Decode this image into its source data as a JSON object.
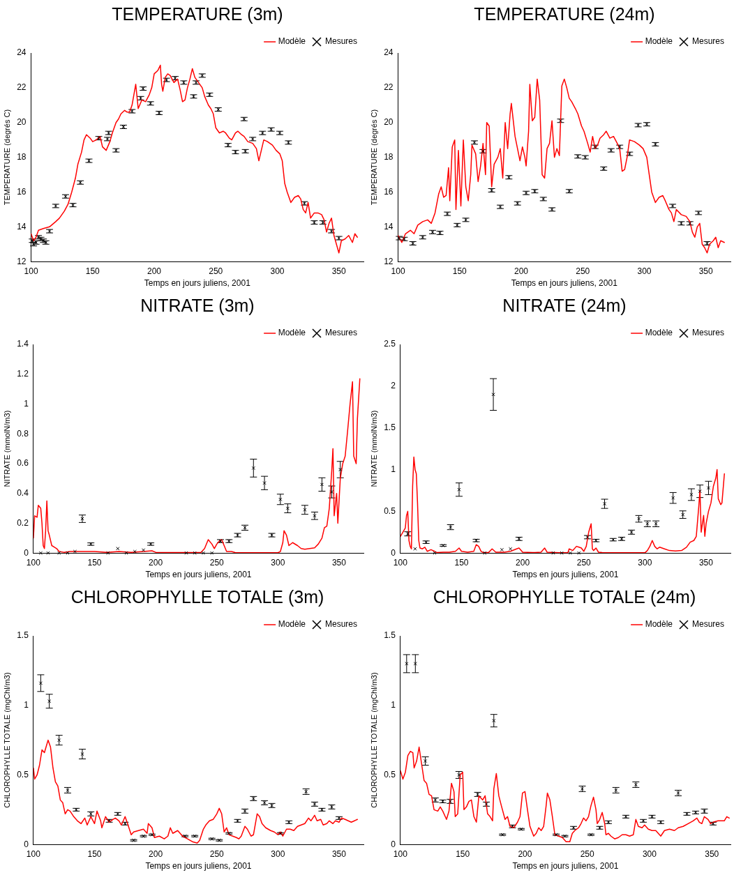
{
  "chart_data": [
    {
      "type": "line",
      "title": "TEMPERATURE (3m)",
      "xlabel": "Temps en jours juliens, 2001",
      "ylabel": "TEMPERATURE (degrés C)",
      "xlim": [
        100,
        370
      ],
      "xticks": [
        100,
        150,
        200,
        250,
        300,
        350
      ],
      "ylim": [
        12,
        24
      ],
      "yticks": [
        12,
        14,
        16,
        18,
        20,
        22,
        24
      ],
      "legend": "top right",
      "series": [
        {
          "name": "Modèle",
          "type": "line",
          "color": "#ff0000",
          "line_style": "solid",
          "x": [
            100,
            102,
            104,
            106,
            110,
            115,
            120,
            123,
            127,
            130,
            133,
            136,
            138,
            141,
            143,
            145,
            148,
            150,
            153,
            156,
            158,
            161,
            164,
            166,
            169,
            171,
            173,
            176,
            178,
            180,
            182,
            185,
            187,
            190,
            193,
            196,
            198,
            200,
            203,
            205,
            206,
            207,
            209,
            211,
            213,
            216,
            219,
            221,
            223,
            225,
            227,
            229,
            231,
            233,
            236,
            239,
            241,
            244,
            246,
            248,
            250,
            253,
            256,
            258,
            261,
            263,
            266,
            268,
            271,
            273,
            276,
            280,
            283,
            285,
            287,
            289,
            292,
            296,
            299,
            302,
            304,
            306,
            308,
            311,
            314,
            317,
            319,
            321,
            323,
            325,
            327,
            330,
            333,
            336,
            338,
            340,
            342,
            344,
            346,
            348,
            350,
            352,
            355,
            358,
            361,
            363,
            365
          ],
          "values": [
            13.6,
            13.2,
            13.4,
            13.8,
            13.9,
            14.0,
            14.3,
            14.5,
            14.9,
            15.3,
            16.0,
            16.8,
            17.6,
            18.3,
            19.0,
            19.3,
            19.1,
            18.9,
            19.0,
            19.2,
            18.6,
            18.4,
            18.9,
            19.4,
            20.0,
            20.2,
            20.5,
            20.7,
            20.6,
            20.6,
            21.0,
            22.2,
            20.8,
            21.3,
            21.2,
            21.6,
            22.0,
            22.8,
            23.0,
            23.3,
            22.2,
            21.8,
            22.6,
            22.8,
            22.7,
            22.3,
            22.5,
            21.9,
            21.2,
            21.3,
            22.0,
            22.5,
            23.1,
            22.6,
            22.3,
            22.0,
            21.5,
            21.0,
            20.8,
            20.5,
            19.7,
            19.4,
            19.5,
            19.4,
            19.1,
            19.0,
            19.4,
            19.5,
            19.3,
            19.2,
            18.9,
            18.8,
            18.5,
            17.8,
            18.4,
            19.0,
            18.9,
            18.7,
            18.4,
            18.2,
            17.8,
            16.5,
            16.0,
            15.4,
            15.7,
            15.8,
            15.6,
            15.0,
            14.8,
            15.4,
            14.5,
            14.8,
            14.8,
            14.7,
            14.4,
            13.7,
            14.2,
            14.5,
            13.5,
            13.0,
            12.5,
            13.2,
            13.3,
            13.5,
            13.1,
            13.6,
            13.4
          ]
        },
        {
          "name": "Mesures",
          "type": "scatter",
          "color": "#000000",
          "marker": "cross",
          "x": [
            101,
            102,
            104,
            106,
            108,
            110,
            112,
            115,
            120,
            128,
            134,
            140,
            147,
            155,
            162,
            163,
            169,
            175,
            182,
            189,
            191,
            197,
            204,
            210,
            217,
            224,
            232,
            234,
            239,
            245,
            252,
            260,
            266,
            273,
            274,
            280,
            288,
            295,
            302,
            309,
            322,
            330,
            337,
            344,
            350
          ],
          "values": [
            13.2,
            13.0,
            13.1,
            13.4,
            13.3,
            13.2,
            13.1,
            13.75,
            15.2,
            15.75,
            15.25,
            16.55,
            17.8,
            19.1,
            19.05,
            19.4,
            18.4,
            19.75,
            20.65,
            21.4,
            21.95,
            21.1,
            20.55,
            22.45,
            22.55,
            22.3,
            21.5,
            22.3,
            22.7,
            21.6,
            20.75,
            18.7,
            18.3,
            20.2,
            18.35,
            19.05,
            19.4,
            19.6,
            19.4,
            18.85,
            15.35,
            14.25,
            14.25,
            13.75,
            13.35
          ],
          "errors": [
            0.1,
            0.1,
            0.1,
            0.1,
            0.1,
            0.1,
            0.1,
            0.1,
            0.1,
            0.1,
            0.1,
            0.1,
            0.1,
            0.1,
            0.1,
            0.1,
            0.1,
            0.1,
            0.1,
            0.1,
            0.1,
            0.1,
            0.1,
            0.1,
            0.1,
            0.1,
            0.1,
            0.1,
            0.1,
            0.1,
            0.1,
            0.1,
            0.1,
            0.1,
            0.1,
            0.1,
            0.1,
            0.1,
            0.1,
            0.1,
            0.1,
            0.1,
            0.1,
            0.1,
            0.1
          ]
        }
      ]
    },
    {
      "type": "line",
      "title": "TEMPERATURE (24m)",
      "xlabel": "Temps en jours juliens, 2001",
      "ylabel": "TEMPERATURE (degrés C)",
      "xlim": [
        100,
        370
      ],
      "xticks": [
        100,
        150,
        200,
        250,
        300,
        350
      ],
      "ylim": [
        12,
        24
      ],
      "yticks": [
        12,
        14,
        16,
        18,
        20,
        22,
        24
      ],
      "legend": "top right",
      "series": [
        {
          "name": "Modèle",
          "type": "line",
          "color": "#ff0000",
          "line_style": "solid",
          "x": [
            100,
            103,
            106,
            110,
            113,
            116,
            120,
            124,
            127,
            130,
            133,
            135,
            137,
            139,
            141,
            142,
            144,
            146,
            147,
            149,
            151,
            153,
            155,
            157,
            159,
            160,
            163,
            165,
            167,
            169,
            171,
            172,
            174,
            176,
            178,
            181,
            183,
            185,
            187,
            189,
            191,
            192,
            195,
            197,
            199,
            201,
            203,
            204,
            206,
            207,
            209,
            211,
            213,
            215,
            217,
            219,
            221,
            223,
            225,
            227,
            229,
            231,
            233,
            235,
            237,
            239,
            241,
            244,
            246,
            249,
            251,
            254,
            256,
            258,
            260,
            262,
            264,
            267,
            269,
            272,
            275,
            278,
            280,
            282,
            284,
            286,
            288,
            292,
            296,
            299,
            302,
            304,
            306,
            309,
            312,
            315,
            317,
            320,
            322,
            324,
            326,
            330,
            334,
            337,
            339,
            341,
            343,
            345,
            347,
            349,
            351,
            353,
            356,
            358,
            360,
            362,
            365
          ],
          "values": [
            13.5,
            13.1,
            13.6,
            13.8,
            13.6,
            14.1,
            14.3,
            14.4,
            14.2,
            14.8,
            15.9,
            16.3,
            15.7,
            15.8,
            17.4,
            15.5,
            18.6,
            19.0,
            15.0,
            18.4,
            15.2,
            19.0,
            16.3,
            15.5,
            17.0,
            18.7,
            18.2,
            16.6,
            17.5,
            18.8,
            17.0,
            20.0,
            19.8,
            16.3,
            17.6,
            18.0,
            18.5,
            16.8,
            20.0,
            18.5,
            20.5,
            21.1,
            19.2,
            18.5,
            17.8,
            18.6,
            18.0,
            17.5,
            19.5,
            22.2,
            20.1,
            20.3,
            22.5,
            21.3,
            17.0,
            16.8,
            18.5,
            18.8,
            20.1,
            18.0,
            18.5,
            18.1,
            22.1,
            22.5,
            22.0,
            21.4,
            21.2,
            20.8,
            20.5,
            19.8,
            19.5,
            18.8,
            18.3,
            19.2,
            18.5,
            18.7,
            19.1,
            19.3,
            19.5,
            19.1,
            19.2,
            18.8,
            18.5,
            17.2,
            17.3,
            18.0,
            19.0,
            18.9,
            18.7,
            18.5,
            18.0,
            17.0,
            16.0,
            15.4,
            15.7,
            15.8,
            15.5,
            15.0,
            14.8,
            14.3,
            15.0,
            14.7,
            14.6,
            14.3,
            13.7,
            13.4,
            14.0,
            14.2,
            13.0,
            12.8,
            12.5,
            13.0,
            13.2,
            13.4,
            12.8,
            13.2,
            13.1
          ]
        },
        {
          "name": "Mesures",
          "type": "scatter",
          "color": "#000000",
          "marker": "cross",
          "x": [
            101,
            105,
            112,
            120,
            128,
            134,
            140,
            148,
            155,
            162,
            169,
            176,
            183,
            190,
            197,
            204,
            211,
            218,
            225,
            232,
            239,
            246,
            252,
            260,
            267,
            273,
            280,
            288,
            295,
            302,
            309,
            323,
            330,
            337,
            344,
            351
          ],
          "values": [
            13.35,
            13.3,
            13.05,
            13.4,
            13.7,
            13.65,
            14.75,
            14.1,
            14.4,
            18.85,
            18.35,
            16.1,
            15.15,
            16.85,
            15.35,
            15.95,
            16.05,
            15.6,
            15.0,
            20.1,
            16.05,
            18.05,
            18.0,
            18.6,
            17.35,
            18.4,
            18.6,
            18.2,
            19.85,
            19.9,
            18.75,
            15.2,
            14.2,
            14.2,
            14.8,
            13.05
          ],
          "errors": [
            0.1,
            0.1,
            0.1,
            0.1,
            0.1,
            0.1,
            0.1,
            0.1,
            0.1,
            0.1,
            0.1,
            0.1,
            0.1,
            0.1,
            0.1,
            0.1,
            0.1,
            0.1,
            0.1,
            0.1,
            0.1,
            0.1,
            0.1,
            0.1,
            0.1,
            0.1,
            0.1,
            0.1,
            0.1,
            0.1,
            0.1,
            0.1,
            0.1,
            0.1,
            0.1,
            0.1
          ]
        }
      ]
    },
    {
      "type": "line",
      "title": "NITRATE (3m)",
      "xlabel": "Temps en jours juliens, 2001",
      "ylabel": "NITRATE (mmolN/m3)",
      "xlim": [
        100,
        370
      ],
      "xticks": [
        100,
        150,
        200,
        250,
        300,
        350
      ],
      "ylim": [
        0,
        1.4
      ],
      "yticks": [
        0,
        0.2,
        0.4,
        0.6,
        0.8,
        1,
        1.2,
        1.4
      ],
      "legend": "top right",
      "series": [
        {
          "name": "Modèle",
          "type": "line",
          "color": "#ff0000",
          "line_style": "solid",
          "x": [
            100,
            101,
            103,
            104,
            106,
            107,
            108,
            109,
            110,
            111,
            112,
            113,
            115,
            117,
            119,
            121,
            125,
            130,
            140,
            150,
            160,
            170,
            180,
            190,
            197,
            200,
            210,
            220,
            230,
            237,
            240,
            243,
            246,
            248,
            250,
            252,
            254,
            256,
            258,
            262,
            265,
            280,
            300,
            302,
            304,
            305,
            307,
            309,
            312,
            316,
            319,
            322,
            326,
            330,
            333,
            336,
            338,
            340,
            342,
            344,
            345,
            346,
            348,
            349,
            351,
            353,
            355,
            357,
            359,
            361,
            362,
            364,
            365,
            367
          ],
          "values": [
            0.1,
            0.25,
            0.24,
            0.32,
            0.3,
            0.2,
            0.05,
            0.03,
            0.15,
            0.35,
            0.15,
            0.12,
            0.05,
            0.04,
            0.03,
            0.01,
            0.005,
            0.01,
            0.01,
            0.01,
            0.005,
            0.01,
            0.005,
            0.01,
            0.015,
            0.005,
            0.003,
            0.003,
            0.003,
            0.003,
            0.03,
            0.09,
            0.06,
            0.03,
            0.06,
            0.08,
            0.09,
            0.05,
            0.01,
            0.01,
            0.003,
            0.002,
            0.002,
            0.01,
            0.07,
            0.15,
            0.12,
            0.05,
            0.07,
            0.05,
            0.03,
            0.025,
            0.03,
            0.035,
            0.06,
            0.1,
            0.17,
            0.18,
            0.3,
            0.55,
            0.7,
            0.25,
            0.4,
            0.2,
            0.5,
            0.6,
            0.65,
            0.82,
            1.0,
            1.15,
            0.65,
            0.6,
            0.9,
            1.17
          ]
        },
        {
          "name": "Mesures",
          "type": "scatter",
          "color": "#000000",
          "marker": "cross",
          "x": [
            106,
            112,
            121,
            128,
            134,
            140,
            147,
            161,
            169,
            176,
            183,
            190,
            196,
            225,
            232,
            239,
            246,
            253,
            260,
            267,
            273,
            280,
            289,
            295,
            302,
            308,
            322,
            330,
            336,
            344,
            351
          ],
          "values": [
            0,
            0,
            0,
            0,
            0.01,
            0.23,
            0.06,
            0,
            0.03,
            0,
            0.01,
            0.02,
            0.06,
            0,
            0,
            0,
            0,
            0.08,
            0.08,
            0.12,
            0.17,
            0.57,
            0.47,
            0.12,
            0.36,
            0.3,
            0.29,
            0.25,
            0.46,
            0.41,
            0.56
          ],
          "errors": [
            null,
            null,
            null,
            null,
            null,
            0.025,
            0.008,
            null,
            null,
            null,
            null,
            null,
            0.008,
            null,
            null,
            null,
            null,
            0.01,
            0.01,
            0.012,
            0.017,
            0.06,
            0.045,
            0.012,
            0.035,
            0.03,
            0.03,
            0.025,
            0.045,
            0.04,
            0.055
          ]
        }
      ]
    },
    {
      "type": "line",
      "title": "NITRATE (24m)",
      "xlabel": "Temps en jours juliens, 2001",
      "ylabel": "NITRATE (mmolN/m3)",
      "xlim": [
        100,
        370
      ],
      "xticks": [
        100,
        150,
        200,
        250,
        300,
        350
      ],
      "ylim": [
        0,
        2.5
      ],
      "yticks": [
        0,
        0.5,
        1,
        1.5,
        2,
        2.5
      ],
      "legend": "top right",
      "series": [
        {
          "name": "Modèle",
          "type": "line",
          "color": "#ff0000",
          "line_style": "solid",
          "x": [
            100,
            102,
            104,
            105,
            106,
            107,
            108,
            109,
            110,
            111,
            112,
            113,
            114,
            115,
            116,
            118,
            120,
            122,
            125,
            128,
            130,
            135,
            140,
            145,
            148,
            150,
            155,
            160,
            162,
            164,
            166,
            168,
            172,
            175,
            178,
            185,
            190,
            195,
            197,
            200,
            210,
            215,
            218,
            220,
            230,
            237,
            238,
            241,
            244,
            246,
            248,
            250,
            252,
            254,
            256,
            257,
            258,
            260,
            262,
            265,
            280,
            300,
            302,
            304,
            306,
            308,
            310,
            312,
            316,
            320,
            325,
            330,
            334,
            337,
            340,
            342,
            344,
            345,
            346,
            348,
            349,
            350,
            352,
            354,
            356,
            358,
            359,
            360,
            362,
            363,
            365
          ],
          "values": [
            0.2,
            0.25,
            0.3,
            0.45,
            0.5,
            0.15,
            0.08,
            0.05,
            0.8,
            1.15,
            1.0,
            0.95,
            0.6,
            0.15,
            0.06,
            0.05,
            0.07,
            0.02,
            0.04,
            0.02,
            0.005,
            0.01,
            0.01,
            0.02,
            0.06,
            0.02,
            0.01,
            0.02,
            0.1,
            0.08,
            0.02,
            0.005,
            0.005,
            0.05,
            0.01,
            0.01,
            0.02,
            0.05,
            0.06,
            0.01,
            0.005,
            0.01,
            0.06,
            0.01,
            0.003,
            0.003,
            0.05,
            0.03,
            0.08,
            0.07,
            0.06,
            0.02,
            0.08,
            0.25,
            0.35,
            0.05,
            0.03,
            0.06,
            0.01,
            0.005,
            0.003,
            0.003,
            0.03,
            0.08,
            0.15,
            0.08,
            0.05,
            0.07,
            0.05,
            0.03,
            0.025,
            0.03,
            0.07,
            0.13,
            0.15,
            0.2,
            0.55,
            0.75,
            0.25,
            0.45,
            0.2,
            0.35,
            0.5,
            0.6,
            0.8,
            0.9,
            1.0,
            0.65,
            0.58,
            0.6,
            0.95
          ]
        },
        {
          "name": "Mesures",
          "type": "scatter",
          "color": "#000000",
          "marker": "cross",
          "x": [
            106,
            112,
            121,
            128,
            135,
            141,
            148,
            162,
            169,
            176,
            183,
            190,
            197,
            225,
            232,
            239,
            246,
            253,
            260,
            267,
            274,
            281,
            289,
            295,
            302,
            309,
            323,
            331,
            338,
            345,
            352
          ],
          "values": [
            0.23,
            0.05,
            0.13,
            0,
            0.09,
            0.31,
            0.76,
            0.15,
            0,
            1.9,
            0.04,
            0.05,
            0.17,
            0,
            0,
            0,
            0,
            0.19,
            0.15,
            0.59,
            0.16,
            0.17,
            0.25,
            0.41,
            0.35,
            0.35,
            0.66,
            0.46,
            0.7,
            0.74,
            0.78
          ],
          "errors": [
            0.025,
            null,
            0.015,
            null,
            0.01,
            0.03,
            0.08,
            0.015,
            null,
            0.19,
            null,
            null,
            0.02,
            null,
            null,
            null,
            null,
            0.02,
            0.015,
            0.055,
            0.015,
            0.02,
            0.025,
            0.04,
            0.035,
            0.035,
            0.065,
            0.045,
            0.07,
            0.075,
            0.08
          ]
        }
      ]
    },
    {
      "type": "line",
      "title": "CHLOROPHYLLE TOTALE (3m)",
      "xlabel": "Temps en jours juliens, 2001",
      "ylabel": "CHLOROPHYLLE TOTALE (mgChl/m3)",
      "xlim": [
        100,
        370
      ],
      "xticks": [
        100,
        150,
        200,
        250,
        300,
        350
      ],
      "ylim": [
        0,
        1.5
      ],
      "yticks": [
        0,
        0.5,
        1,
        1.5
      ],
      "legend": "top right",
      "series": [
        {
          "name": "Modèle",
          "type": "line",
          "color": "#ff0000",
          "line_style": "solid",
          "x": [
            100,
            101,
            103,
            105,
            107,
            109,
            111,
            112,
            114,
            116,
            118,
            120,
            122,
            124,
            126,
            128,
            130,
            133,
            136,
            139,
            142,
            144,
            147,
            150,
            152,
            155,
            156,
            159,
            162,
            165,
            167,
            170,
            172,
            175,
            177,
            180,
            182,
            186,
            190,
            193,
            194,
            197,
            199,
            203,
            207,
            210,
            212,
            214,
            218,
            220,
            222,
            226,
            230,
            234,
            236,
            239,
            241,
            244,
            247,
            250,
            252,
            254,
            256,
            258,
            260,
            263,
            266,
            268,
            270,
            273,
            275,
            278,
            280,
            283,
            285,
            287,
            290,
            294,
            297,
            300,
            302,
            304,
            307,
            310,
            313,
            316,
            319,
            322,
            325,
            327,
            330,
            332,
            335,
            337,
            340,
            342,
            345,
            347,
            350,
            352,
            355,
            360,
            365
          ],
          "values": [
            0.55,
            0.47,
            0.5,
            0.57,
            0.68,
            0.66,
            0.72,
            0.75,
            0.7,
            0.55,
            0.45,
            0.42,
            0.32,
            0.3,
            0.22,
            0.25,
            0.24,
            0.2,
            0.17,
            0.15,
            0.19,
            0.14,
            0.2,
            0.15,
            0.24,
            0.17,
            0.12,
            0.2,
            0.16,
            0.18,
            0.19,
            0.17,
            0.14,
            0.2,
            0.15,
            0.07,
            0.09,
            0.1,
            0.11,
            0.08,
            0.15,
            0.12,
            0.05,
            0.06,
            0.04,
            0.06,
            0.12,
            0.08,
            0.1,
            0.08,
            0.06,
            0.04,
            0.02,
            0.01,
            0.03,
            0.11,
            0.14,
            0.17,
            0.18,
            0.22,
            0.26,
            0.22,
            0.09,
            0.12,
            0.07,
            0.06,
            0.05,
            0.04,
            0.06,
            0.13,
            0.11,
            0.06,
            0.07,
            0.22,
            0.2,
            0.15,
            0.12,
            0.1,
            0.09,
            0.07,
            0.09,
            0.06,
            0.11,
            0.11,
            0.1,
            0.13,
            0.14,
            0.15,
            0.19,
            0.17,
            0.21,
            0.17,
            0.18,
            0.14,
            0.15,
            0.17,
            0.15,
            0.17,
            0.16,
            0.19,
            0.18,
            0.16,
            0.18
          ]
        },
        {
          "name": "Mesures",
          "type": "scatter",
          "color": "#000000",
          "marker": "cross",
          "x": [
            106,
            113,
            121,
            128,
            135,
            140,
            147,
            162,
            169,
            175,
            182,
            190,
            197,
            224,
            232,
            246,
            252,
            260,
            267,
            273,
            280,
            289,
            295,
            302,
            309,
            323,
            330,
            336,
            344,
            350
          ],
          "values": [
            1.16,
            1.03,
            0.75,
            0.39,
            0.25,
            0.65,
            0.22,
            0.17,
            0.22,
            0.15,
            0.03,
            0.06,
            0.07,
            0.06,
            0.06,
            0.04,
            0.03,
            0.08,
            0.17,
            0.24,
            0.33,
            0.3,
            0.28,
            0.08,
            0.16,
            0.38,
            0.29,
            0.25,
            0.27,
            0.19
          ],
          "errors": [
            0.06,
            0.05,
            0.035,
            0.02,
            0.01,
            0.035,
            0.015,
            0.01,
            0.01,
            0.01,
            0.005,
            0.005,
            0.005,
            0.005,
            0.005,
            0.005,
            0.005,
            0.005,
            0.01,
            0.015,
            0.015,
            0.015,
            0.015,
            0.005,
            0.01,
            0.02,
            0.015,
            0.01,
            0.015,
            0.01
          ]
        }
      ]
    },
    {
      "type": "line",
      "title": "CHLOROPHYLLE TOTALE (24m)",
      "xlabel": "Temps en jours juliens, 2001",
      "ylabel": "CHLOROPHYLLE TOTALE (mgChl/m3)",
      "xlim": [
        100,
        365
      ],
      "xticks": [
        100,
        150,
        200,
        250,
        300,
        350
      ],
      "ylim": [
        0,
        1.5
      ],
      "yticks": [
        0,
        0.5,
        1,
        1.5
      ],
      "legend": "top right",
      "series": [
        {
          "name": "Modèle",
          "type": "line",
          "color": "#ff0000",
          "line_style": "solid",
          "x": [
            100,
            102,
            104,
            106,
            108,
            110,
            111,
            113,
            115,
            117,
            119,
            121,
            123,
            125,
            127,
            130,
            132,
            134,
            136,
            137,
            139,
            141,
            143,
            144,
            146,
            148,
            150,
            151,
            153,
            155,
            157,
            159,
            161,
            163,
            166,
            168,
            170,
            172,
            174,
            175,
            177,
            179,
            181,
            184,
            186,
            188,
            191,
            194,
            196,
            198,
            200,
            202,
            204,
            207,
            209,
            211,
            213,
            215,
            217,
            218,
            220,
            222,
            224,
            227,
            230,
            233,
            236,
            238,
            240,
            243,
            245,
            247,
            249,
            251,
            253,
            255,
            257,
            258,
            260,
            262,
            264,
            265,
            267,
            269,
            272,
            275,
            278,
            281,
            284,
            287,
            289,
            291,
            294,
            296,
            299,
            302,
            305,
            307,
            309,
            312,
            316,
            320,
            323,
            327,
            331,
            335,
            338,
            340,
            342,
            344,
            347,
            349,
            351,
            355,
            360,
            362,
            364
          ],
          "values": [
            0.53,
            0.47,
            0.52,
            0.64,
            0.67,
            0.66,
            0.55,
            0.6,
            0.7,
            0.58,
            0.46,
            0.44,
            0.36,
            0.35,
            0.25,
            0.24,
            0.27,
            0.24,
            0.2,
            0.18,
            0.24,
            0.44,
            0.38,
            0.2,
            0.22,
            0.5,
            0.52,
            0.25,
            0.27,
            0.31,
            0.32,
            0.2,
            0.16,
            0.35,
            0.32,
            0.35,
            0.22,
            0.2,
            0.17,
            0.4,
            0.51,
            0.35,
            0.28,
            0.18,
            0.2,
            0.13,
            0.12,
            0.16,
            0.2,
            0.37,
            0.38,
            0.25,
            0.13,
            0.06,
            0.08,
            0.12,
            0.1,
            0.13,
            0.28,
            0.37,
            0.32,
            0.2,
            0.07,
            0.06,
            0.05,
            0.02,
            0.02,
            0.08,
            0.1,
            0.12,
            0.15,
            0.19,
            0.17,
            0.2,
            0.28,
            0.34,
            0.25,
            0.15,
            0.18,
            0.23,
            0.15,
            0.07,
            0.08,
            0.06,
            0.04,
            0.05,
            0.07,
            0.07,
            0.06,
            0.07,
            0.18,
            0.13,
            0.12,
            0.14,
            0.11,
            0.1,
            0.1,
            0.08,
            0.06,
            0.1,
            0.11,
            0.1,
            0.12,
            0.13,
            0.15,
            0.17,
            0.19,
            0.16,
            0.15,
            0.2,
            0.18,
            0.15,
            0.16,
            0.17,
            0.17,
            0.2,
            0.19
          ]
        },
        {
          "name": "Mesures",
          "type": "scatter",
          "color": "#000000",
          "marker": "cross",
          "x": [
            105,
            112,
            120,
            128,
            134,
            140,
            147,
            162,
            169,
            175,
            182,
            190,
            197,
            225,
            232,
            239,
            246,
            253,
            260,
            267,
            273,
            281,
            289,
            295,
            302,
            309,
            323,
            330,
            337,
            344,
            351
          ],
          "values": [
            1.3,
            1.3,
            0.6,
            0.32,
            0.31,
            0.31,
            0.5,
            0.36,
            0.29,
            0.89,
            0.07,
            0.13,
            0.11,
            0.07,
            0.06,
            0.12,
            0.4,
            0.07,
            0.12,
            0.16,
            0.39,
            0.2,
            0.43,
            0.17,
            0.2,
            0.16,
            0.37,
            0.22,
            0.23,
            0.24,
            0.15
          ],
          "errors": [
            0.065,
            0.065,
            0.03,
            0.015,
            0.01,
            0.015,
            0.025,
            0.015,
            0.015,
            0.045,
            0.005,
            0.01,
            0.005,
            0.005,
            0.005,
            0.01,
            0.02,
            0.005,
            0.01,
            0.01,
            0.02,
            0.01,
            0.02,
            0.01,
            0.01,
            0.01,
            0.02,
            0.01,
            0.01,
            0.015,
            0.01
          ]
        }
      ]
    }
  ]
}
